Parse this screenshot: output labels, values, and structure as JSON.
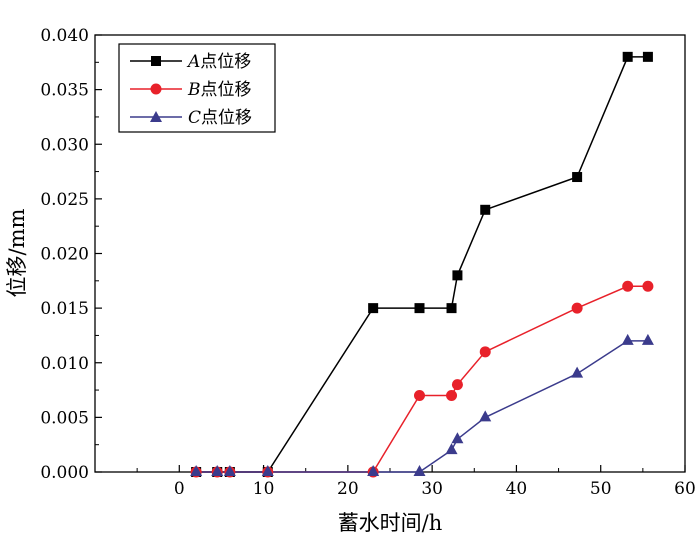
{
  "chart_data": {
    "type": "line",
    "title": "",
    "xlabel": "蓄水时间/h",
    "ylabel": "位移/mm",
    "xlim": [
      -10,
      60
    ],
    "ylim": [
      0,
      0.04
    ],
    "xticks": [
      "0",
      "10",
      "20",
      "30",
      "40",
      "50",
      "60"
    ],
    "yticks": [
      "0.000",
      "0.005",
      "0.010",
      "0.015",
      "0.020",
      "0.025",
      "0.030",
      "0.035",
      "0.040"
    ],
    "grid": false,
    "legend_position": "top-left",
    "series": [
      {
        "name": "A点位移",
        "name_italic": "A",
        "name_rest": "点位移",
        "color": "#000000",
        "marker": "square",
        "x": [
          2,
          4.5,
          6,
          10.5,
          23,
          28.5,
          32.3,
          33,
          36.3,
          47.2,
          53.2,
          55.6
        ],
        "y": [
          0,
          0,
          0,
          0,
          0.015,
          0.015,
          0.015,
          0.018,
          0.024,
          0.027,
          0.038,
          0.038
        ]
      },
      {
        "name": "B点位移",
        "name_italic": "B",
        "name_rest": "点位移",
        "color": "#e8212a",
        "marker": "circle",
        "x": [
          2,
          4.5,
          6,
          10.5,
          23,
          28.5,
          32.3,
          33,
          36.3,
          47.2,
          53.2,
          55.6
        ],
        "y": [
          0,
          0,
          0,
          0,
          0,
          0.007,
          0.007,
          0.008,
          0.011,
          0.015,
          0.017,
          0.017
        ]
      },
      {
        "name": "C点位移",
        "name_italic": "C",
        "name_rest": "点位移",
        "color": "#3b3b8c",
        "marker": "triangle",
        "x": [
          2,
          4.5,
          6,
          10.5,
          23,
          28.5,
          32.3,
          33,
          36.3,
          47.2,
          53.2,
          55.6
        ],
        "y": [
          0,
          0,
          0,
          0,
          0,
          0,
          0.002,
          0.003,
          0.005,
          0.009,
          0.012,
          0.012
        ]
      }
    ]
  }
}
